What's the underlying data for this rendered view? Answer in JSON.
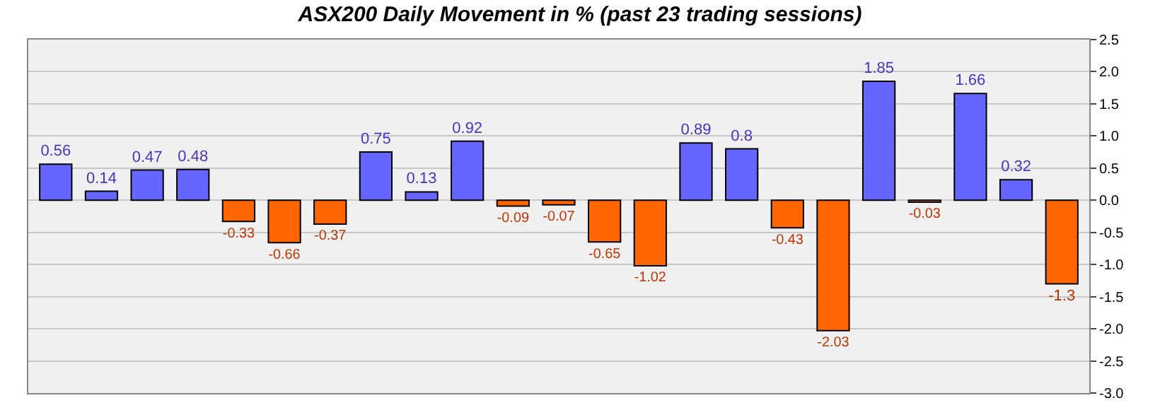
{
  "chart_data": {
    "type": "bar",
    "title": "ASX200 Daily Movement in % (past 23 trading sessions)",
    "categories": [
      null,
      null,
      null,
      null,
      null,
      null,
      null,
      null,
      null,
      null,
      null,
      null,
      null,
      null,
      null,
      null,
      null,
      null,
      null,
      null,
      null,
      null,
      null
    ],
    "values": [
      0.56,
      0.14,
      0.47,
      0.48,
      -0.33,
      -0.66,
      -0.37,
      0.75,
      0.13,
      0.92,
      -0.09,
      -0.07,
      -0.65,
      -1.02,
      0.89,
      0.8,
      -0.43,
      -2.03,
      1.85,
      -0.03,
      1.66,
      0.32,
      -1.3
    ],
    "colors": [
      "#6666ff",
      "#6666ff",
      "#6666ff",
      "#6666ff",
      "#ff6600",
      "#ff6600",
      "#ff6600",
      "#6666ff",
      "#6666ff",
      "#6666ff",
      "#ff6600",
      "#ff6600",
      "#ff6600",
      "#ff6600",
      "#6666ff",
      "#6666ff",
      "#ff6600",
      "#ff6600",
      "#6666ff",
      "#ff6600",
      "#6666ff",
      "#6666ff",
      "#ff6600"
    ],
    "ylim": [
      -3,
      2.5
    ],
    "yticks": [
      {
        "value": 2.5,
        "label": "2.5"
      },
      {
        "value": 2,
        "label": "2.0"
      },
      {
        "value": 1.5,
        "label": "1.5"
      },
      {
        "value": 1,
        "label": "1.0"
      },
      {
        "value": 0.5,
        "label": "0.5"
      },
      {
        "value": 0,
        "label": "0.0"
      },
      {
        "value": -0.5,
        "label": "-0.5"
      },
      {
        "value": -1,
        "label": "-1.0"
      },
      {
        "value": -1.5,
        "label": "-1.5"
      },
      {
        "value": -2,
        "label": "-2.0"
      },
      {
        "value": -2.5,
        "label": "-2.5"
      },
      {
        "value": -3,
        "label": "-3.0"
      }
    ],
    "grid": "y",
    "data_labels": true
  }
}
